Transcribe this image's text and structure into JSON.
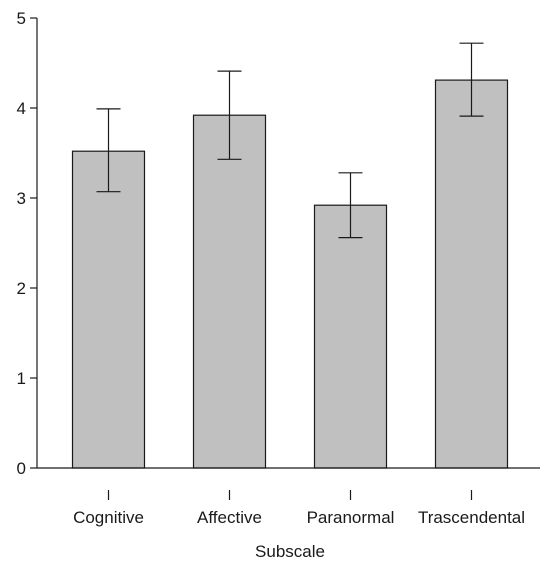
{
  "chart_data": {
    "type": "bar",
    "categories": [
      "Cognitive",
      "Affective",
      "Paranormal",
      "Trascendental"
    ],
    "values": [
      3.52,
      3.92,
      2.92,
      4.31
    ],
    "error_bars": [
      {
        "low": 3.07,
        "high": 3.99
      },
      {
        "low": 3.43,
        "high": 4.41
      },
      {
        "low": 2.56,
        "high": 3.28
      },
      {
        "low": 3.91,
        "high": 4.72
      }
    ],
    "title": "",
    "xlabel": "Subscale",
    "ylabel": "",
    "ylim": [
      0,
      5
    ],
    "yticks": [
      0,
      1,
      2,
      3,
      4,
      5
    ],
    "grid": false,
    "colors": {
      "bar_fill": "#c0c0c0",
      "bar_stroke": "#1a1a1a",
      "axis": "#1a1a1a"
    }
  }
}
